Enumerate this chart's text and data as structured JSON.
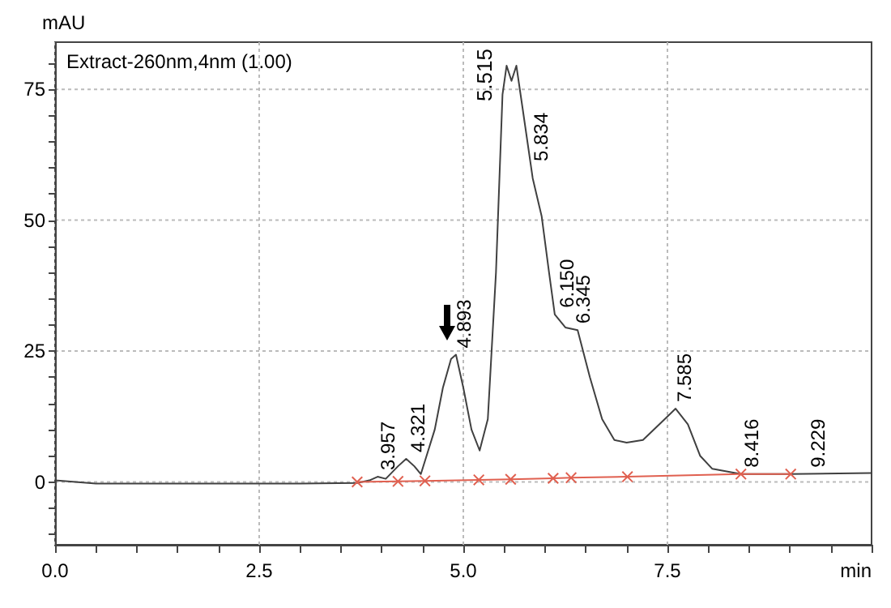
{
  "chart_data": {
    "type": "line",
    "title": "Extract-260nm,4nm (1.00)",
    "xlabel": "min",
    "ylabel": "mAU",
    "xlim": [
      0,
      10
    ],
    "ylim": [
      -12,
      84
    ],
    "xticks": [
      {
        "value": 0,
        "label": "0.0"
      },
      {
        "value": 0.5,
        "label": null
      },
      {
        "value": 1,
        "label": null
      },
      {
        "value": 1.5,
        "label": null
      },
      {
        "value": 2,
        "label": null
      },
      {
        "value": 2.5,
        "label": "2.5"
      },
      {
        "value": 3,
        "label": null
      },
      {
        "value": 3.5,
        "label": null
      },
      {
        "value": 4,
        "label": null
      },
      {
        "value": 4.5,
        "label": null
      },
      {
        "value": 5,
        "label": "5.0"
      },
      {
        "value": 5.5,
        "label": null
      },
      {
        "value": 6,
        "label": null
      },
      {
        "value": 6.5,
        "label": null
      },
      {
        "value": 7,
        "label": null
      },
      {
        "value": 7.5,
        "label": "7.5"
      },
      {
        "value": 8,
        "label": null
      },
      {
        "value": 8.5,
        "label": null
      },
      {
        "value": 9,
        "label": null
      },
      {
        "value": 9.5,
        "label": null
      },
      {
        "value": 10,
        "label": null
      }
    ],
    "yticks": [
      {
        "value": -10,
        "label": null
      },
      {
        "value": -5,
        "label": null
      },
      0,
      {
        "value": 5,
        "label": null
      },
      {
        "value": 10,
        "label": null
      },
      {
        "value": 15,
        "label": null
      },
      {
        "value": 20,
        "label": null
      },
      25,
      {
        "value": 30,
        "label": null
      },
      {
        "value": 35,
        "label": null
      },
      {
        "value": 40,
        "label": null
      },
      {
        "value": 45,
        "label": null
      },
      50,
      {
        "value": 55,
        "label": null
      },
      {
        "value": 60,
        "label": null
      },
      {
        "value": 65,
        "label": null
      },
      {
        "value": 70,
        "label": null
      },
      75,
      {
        "value": 80,
        "label": null
      }
    ],
    "grid": true,
    "line_style": "solid",
    "series": [
      {
        "color": "#404040",
        "marker": "none",
        "x": [
          0,
          0.5,
          1,
          2,
          3,
          3.7,
          3.85,
          3.95,
          4.05,
          4.2,
          4.3,
          4.4,
          4.48,
          4.55,
          4.65,
          4.75,
          4.85,
          4.91,
          5.0,
          5.1,
          5.2,
          5.3,
          5.4,
          5.48,
          5.53,
          5.59,
          5.65,
          5.72,
          5.85,
          5.96,
          6.05,
          6.12,
          6.25,
          6.4,
          6.55,
          6.7,
          6.85,
          7.0,
          7.2,
          7.4,
          7.6,
          7.75,
          7.9,
          8.05,
          8.4,
          9,
          10
        ],
        "values": [
          0.3,
          -0.3,
          -0.3,
          -0.3,
          -0.3,
          -0.2,
          0.3,
          1,
          0.6,
          3,
          4.4,
          3,
          1.5,
          5,
          10,
          18,
          23.5,
          24.3,
          18,
          10,
          6,
          12,
          40,
          74,
          79.5,
          76.6,
          79.5,
          72,
          58,
          50.7,
          40,
          32,
          29.5,
          29,
          20,
          12,
          8,
          7.5,
          8,
          11,
          14,
          11,
          5,
          2.5,
          1.5,
          1.5,
          1.7
        ]
      },
      {
        "color": "#e06050",
        "marker": "cross",
        "x": [
          3.7,
          4.2,
          4.53,
          5.19,
          5.58,
          6.1,
          6.32,
          7.01,
          8.4,
          9.01
        ],
        "values": [
          0,
          0.1,
          0.2,
          0.4,
          0.5,
          0.7,
          0.8,
          1.0,
          1.5,
          1.5
        ]
      }
    ],
    "annotations": [
      {
        "text": "3.957",
        "x": 3.957,
        "y": 1
      },
      {
        "text": "4.321",
        "x": 4.321,
        "y": 4.4
      },
      {
        "text": "4.893",
        "x": 4.893,
        "y": 24.3
      },
      {
        "text": "5.515",
        "x": 5.515,
        "y": 79.5
      },
      {
        "text": "5.834",
        "x": 5.834,
        "y": 60
      },
      {
        "text": "6.150",
        "x": 6.15,
        "y": 32
      },
      {
        "text": "6.345",
        "x": 6.345,
        "y": 29
      },
      {
        "text": "7.585",
        "x": 7.585,
        "y": 14
      },
      {
        "text": "8.416",
        "x": 8.416,
        "y": 1.5
      },
      {
        "text": "9.229",
        "x": 9.229,
        "y": 1.5
      }
    ]
  }
}
